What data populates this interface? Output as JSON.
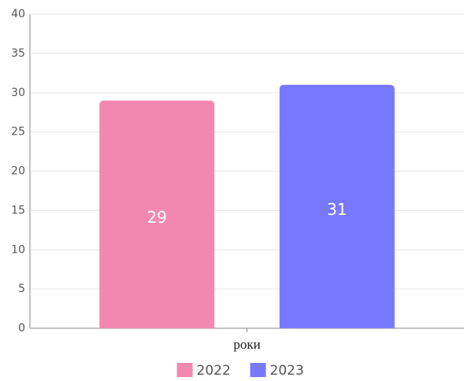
{
  "chart_data": {
    "type": "bar",
    "categories": [
      "роки"
    ],
    "series": [
      {
        "name": "2022",
        "color": "#f288b0",
        "values": [
          29
        ]
      },
      {
        "name": "2023",
        "color": "#7878fe",
        "values": [
          31
        ]
      }
    ],
    "ylim": [
      0,
      40
    ],
    "yticks": [
      0,
      5,
      10,
      15,
      20,
      25,
      30,
      35,
      40
    ],
    "grid": true,
    "legend": "bottom",
    "data_labels": true
  }
}
